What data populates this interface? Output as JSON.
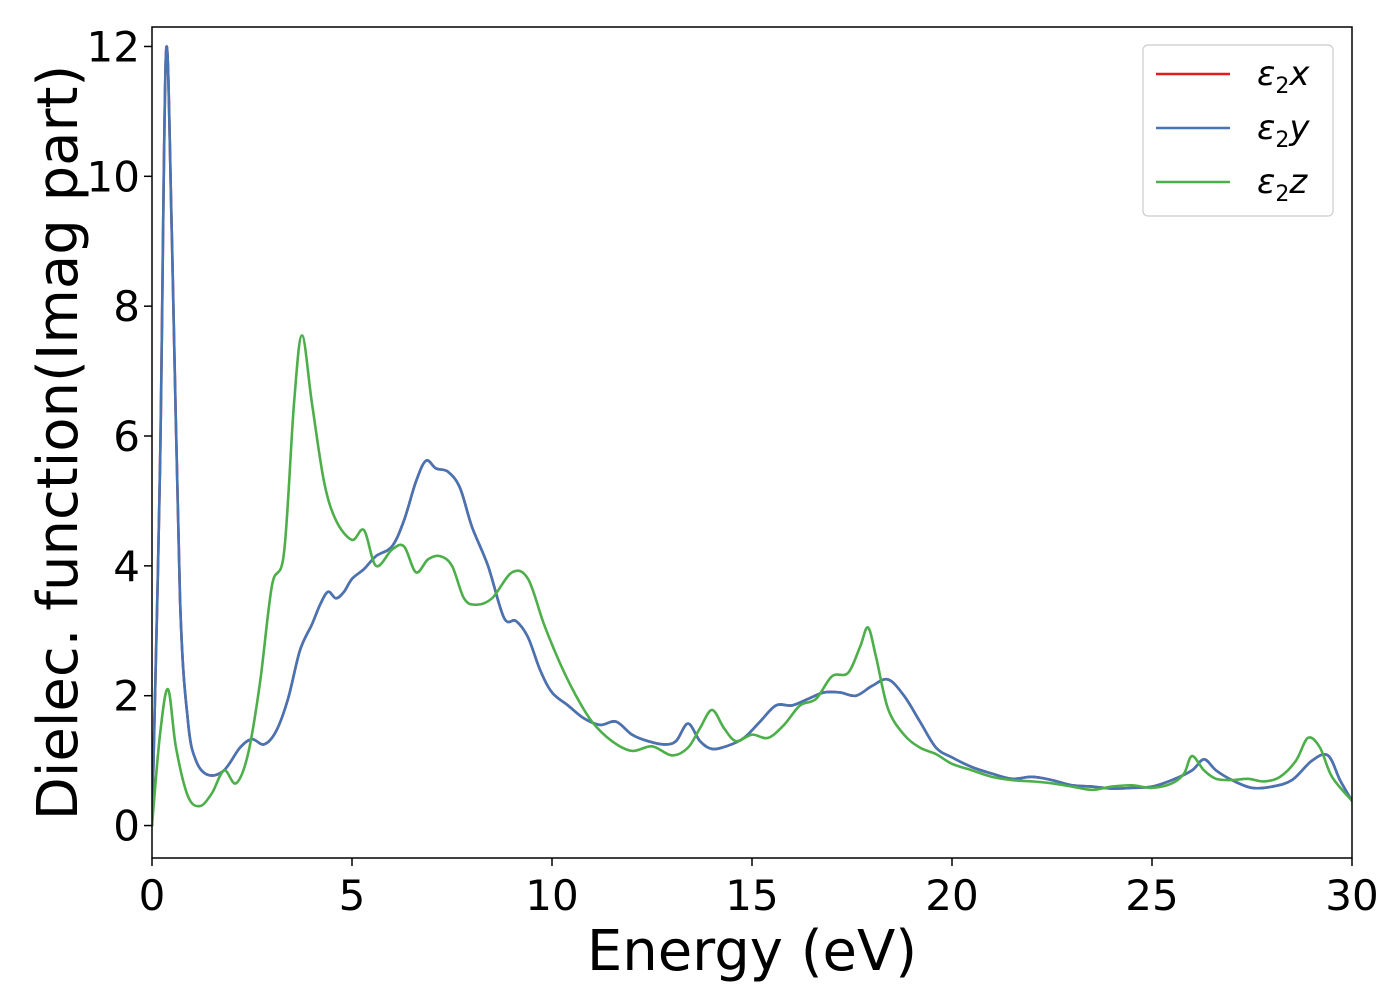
{
  "chart_data": {
    "type": "line",
    "xlabel": "Energy (eV)",
    "ylabel": "Dielec. function(Imag part)",
    "xlim": [
      0,
      30
    ],
    "ylim": [
      -0.5,
      12.3
    ],
    "x_ticks": [
      0,
      5,
      10,
      15,
      20,
      25,
      30
    ],
    "y_ticks": [
      0,
      2,
      4,
      6,
      8,
      10,
      12
    ],
    "grid": false,
    "legend_position": "top-right",
    "series": [
      {
        "name": "ε2x",
        "legend_main": "ε",
        "legend_sub": "2",
        "legend_suffix": "x",
        "color": "#e41a1c",
        "x": [
          0,
          0.2,
          0.35,
          0.5,
          0.7,
          0.9,
          1.1,
          1.4,
          1.8,
          2.2,
          2.5,
          2.8,
          3.1,
          3.4,
          3.7,
          4.0,
          4.2,
          4.4,
          4.6,
          4.8,
          5.0,
          5.3,
          5.6,
          6.0,
          6.3,
          6.6,
          6.85,
          7.1,
          7.4,
          7.7,
          8.0,
          8.4,
          8.8,
          9.1,
          9.4,
          9.7,
          10.0,
          10.4,
          10.8,
          11.2,
          11.6,
          12.0,
          12.4,
          12.8,
          13.1,
          13.4,
          13.7,
          14.0,
          14.4,
          14.8,
          15.2,
          15.6,
          16.0,
          16.4,
          16.8,
          17.2,
          17.6,
          18.0,
          18.4,
          18.8,
          19.2,
          19.6,
          20.0,
          20.5,
          21.0,
          21.5,
          22.0,
          22.5,
          23.0,
          23.5,
          24.0,
          24.5,
          25.0,
          25.5,
          26.0,
          26.3,
          26.6,
          27.0,
          27.5,
          28.0,
          28.5,
          29.0,
          29.4,
          29.7,
          30.0
        ],
        "y": [
          0,
          5.5,
          11.9,
          9.0,
          3.5,
          1.6,
          1.0,
          0.78,
          0.85,
          1.2,
          1.33,
          1.25,
          1.45,
          1.95,
          2.7,
          3.1,
          3.4,
          3.6,
          3.5,
          3.6,
          3.8,
          3.95,
          4.15,
          4.3,
          4.7,
          5.3,
          5.62,
          5.5,
          5.45,
          5.2,
          4.6,
          4.0,
          3.2,
          3.15,
          2.9,
          2.4,
          2.05,
          1.85,
          1.65,
          1.55,
          1.6,
          1.4,
          1.3,
          1.25,
          1.3,
          1.57,
          1.3,
          1.18,
          1.23,
          1.35,
          1.6,
          1.85,
          1.85,
          1.95,
          2.05,
          2.05,
          2.0,
          2.15,
          2.25,
          2.0,
          1.6,
          1.2,
          1.05,
          0.9,
          0.8,
          0.72,
          0.75,
          0.7,
          0.62,
          0.6,
          0.57,
          0.58,
          0.6,
          0.7,
          0.85,
          1.02,
          0.85,
          0.7,
          0.58,
          0.6,
          0.7,
          1.0,
          1.08,
          0.7,
          0.38
        ]
      },
      {
        "name": "ε2y",
        "legend_main": "ε",
        "legend_sub": "2",
        "legend_suffix": "y",
        "color": "#4575b4",
        "x": [
          0,
          0.2,
          0.35,
          0.5,
          0.7,
          0.9,
          1.1,
          1.4,
          1.8,
          2.2,
          2.5,
          2.8,
          3.1,
          3.4,
          3.7,
          4.0,
          4.2,
          4.4,
          4.6,
          4.8,
          5.0,
          5.3,
          5.6,
          6.0,
          6.3,
          6.6,
          6.85,
          7.1,
          7.4,
          7.7,
          8.0,
          8.4,
          8.8,
          9.1,
          9.4,
          9.7,
          10.0,
          10.4,
          10.8,
          11.2,
          11.6,
          12.0,
          12.4,
          12.8,
          13.1,
          13.4,
          13.7,
          14.0,
          14.4,
          14.8,
          15.2,
          15.6,
          16.0,
          16.4,
          16.8,
          17.2,
          17.6,
          18.0,
          18.4,
          18.8,
          19.2,
          19.6,
          20.0,
          20.5,
          21.0,
          21.5,
          22.0,
          22.5,
          23.0,
          23.5,
          24.0,
          24.5,
          25.0,
          25.5,
          26.0,
          26.3,
          26.6,
          27.0,
          27.5,
          28.0,
          28.5,
          29.0,
          29.4,
          29.7,
          30.0
        ],
        "y": [
          0,
          5.5,
          11.9,
          9.0,
          3.5,
          1.6,
          1.0,
          0.78,
          0.85,
          1.2,
          1.33,
          1.25,
          1.45,
          1.95,
          2.7,
          3.1,
          3.4,
          3.6,
          3.5,
          3.6,
          3.8,
          3.95,
          4.15,
          4.3,
          4.7,
          5.3,
          5.62,
          5.5,
          5.45,
          5.2,
          4.6,
          4.0,
          3.2,
          3.15,
          2.9,
          2.4,
          2.05,
          1.85,
          1.65,
          1.55,
          1.6,
          1.4,
          1.3,
          1.25,
          1.3,
          1.57,
          1.3,
          1.18,
          1.23,
          1.35,
          1.6,
          1.85,
          1.85,
          1.95,
          2.05,
          2.05,
          2.0,
          2.15,
          2.25,
          2.0,
          1.6,
          1.2,
          1.05,
          0.9,
          0.8,
          0.72,
          0.75,
          0.7,
          0.62,
          0.6,
          0.57,
          0.58,
          0.6,
          0.7,
          0.85,
          1.02,
          0.85,
          0.7,
          0.58,
          0.6,
          0.7,
          1.0,
          1.08,
          0.7,
          0.38
        ]
      },
      {
        "name": "ε2z",
        "legend_main": "ε",
        "legend_sub": "2",
        "legend_suffix": "z",
        "color": "#4daf4a",
        "x": [
          0,
          0.2,
          0.4,
          0.6,
          0.9,
          1.2,
          1.5,
          1.8,
          2.1,
          2.4,
          2.7,
          3.0,
          3.3,
          3.55,
          3.75,
          4.0,
          4.3,
          4.6,
          5.0,
          5.3,
          5.6,
          6.0,
          6.3,
          6.6,
          6.9,
          7.2,
          7.5,
          7.8,
          8.1,
          8.5,
          9.0,
          9.4,
          9.8,
          10.2,
          10.6,
          11.0,
          11.5,
          12.0,
          12.5,
          13.0,
          13.4,
          13.7,
          14.0,
          14.3,
          14.6,
          15.0,
          15.4,
          15.8,
          16.2,
          16.6,
          17.0,
          17.4,
          17.7,
          17.9,
          18.1,
          18.4,
          18.8,
          19.2,
          19.6,
          20.0,
          20.5,
          21.0,
          21.5,
          22.0,
          22.5,
          23.0,
          23.5,
          24.0,
          24.5,
          25.0,
          25.5,
          25.8,
          26.0,
          26.3,
          26.6,
          27.0,
          27.4,
          27.8,
          28.2,
          28.6,
          28.9,
          29.2,
          29.5,
          30.0
        ],
        "y": [
          0,
          1.4,
          2.1,
          1.2,
          0.45,
          0.3,
          0.5,
          0.85,
          0.65,
          1.1,
          2.2,
          3.7,
          4.2,
          6.5,
          7.55,
          6.5,
          5.3,
          4.7,
          4.4,
          4.55,
          4.0,
          4.25,
          4.3,
          3.9,
          4.1,
          4.15,
          4.0,
          3.5,
          3.4,
          3.5,
          3.9,
          3.8,
          3.1,
          2.5,
          2.0,
          1.6,
          1.3,
          1.15,
          1.22,
          1.08,
          1.2,
          1.5,
          1.78,
          1.5,
          1.3,
          1.4,
          1.35,
          1.55,
          1.85,
          1.95,
          2.3,
          2.35,
          2.75,
          3.05,
          2.6,
          1.8,
          1.4,
          1.2,
          1.1,
          0.95,
          0.85,
          0.75,
          0.7,
          0.68,
          0.65,
          0.6,
          0.55,
          0.6,
          0.62,
          0.58,
          0.65,
          0.8,
          1.07,
          0.85,
          0.72,
          0.7,
          0.72,
          0.68,
          0.75,
          1.0,
          1.35,
          1.2,
          0.75,
          0.38
        ]
      }
    ]
  }
}
